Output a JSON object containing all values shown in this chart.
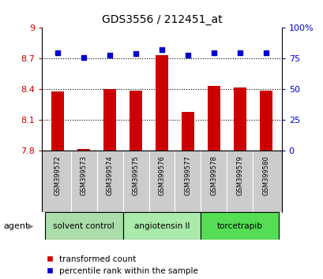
{
  "title": "GDS3556 / 212451_at",
  "samples": [
    "GSM399572",
    "GSM399573",
    "GSM399574",
    "GSM399575",
    "GSM399576",
    "GSM399577",
    "GSM399578",
    "GSM399579",
    "GSM399580"
  ],
  "bar_values": [
    8.38,
    7.82,
    8.4,
    8.39,
    8.73,
    8.18,
    8.43,
    8.42,
    8.39
  ],
  "percentile_values": [
    80,
    76,
    78,
    79,
    82,
    78,
    80,
    80,
    80
  ],
  "bar_color": "#cc0000",
  "dot_color": "#0000cc",
  "ylim_left": [
    7.8,
    9.0
  ],
  "ylim_right": [
    0,
    100
  ],
  "yticks_left": [
    7.8,
    8.1,
    8.4,
    8.7,
    9.0
  ],
  "ytick_labels_left": [
    "7.8",
    "8.1",
    "8.4",
    "8.7",
    "9"
  ],
  "yticks_right": [
    0,
    25,
    50,
    75,
    100
  ],
  "ytick_labels_right": [
    "0",
    "25",
    "50",
    "75",
    "100%"
  ],
  "grid_lines": [
    8.1,
    8.4,
    8.7
  ],
  "groups": [
    {
      "label": "solvent control",
      "indices": [
        0,
        1,
        2
      ],
      "color": "#aaddaa"
    },
    {
      "label": "angiotensin II",
      "indices": [
        3,
        4,
        5
      ],
      "color": "#aaeaaa"
    },
    {
      "label": "torcetrapib",
      "indices": [
        6,
        7,
        8
      ],
      "color": "#55dd55"
    }
  ],
  "agent_label": "agent",
  "legend_bar_label": "transformed count",
  "legend_dot_label": "percentile rank within the sample",
  "bg_color": "#ffffff",
  "sample_label_bg": "#cccccc",
  "bar_width": 0.5
}
